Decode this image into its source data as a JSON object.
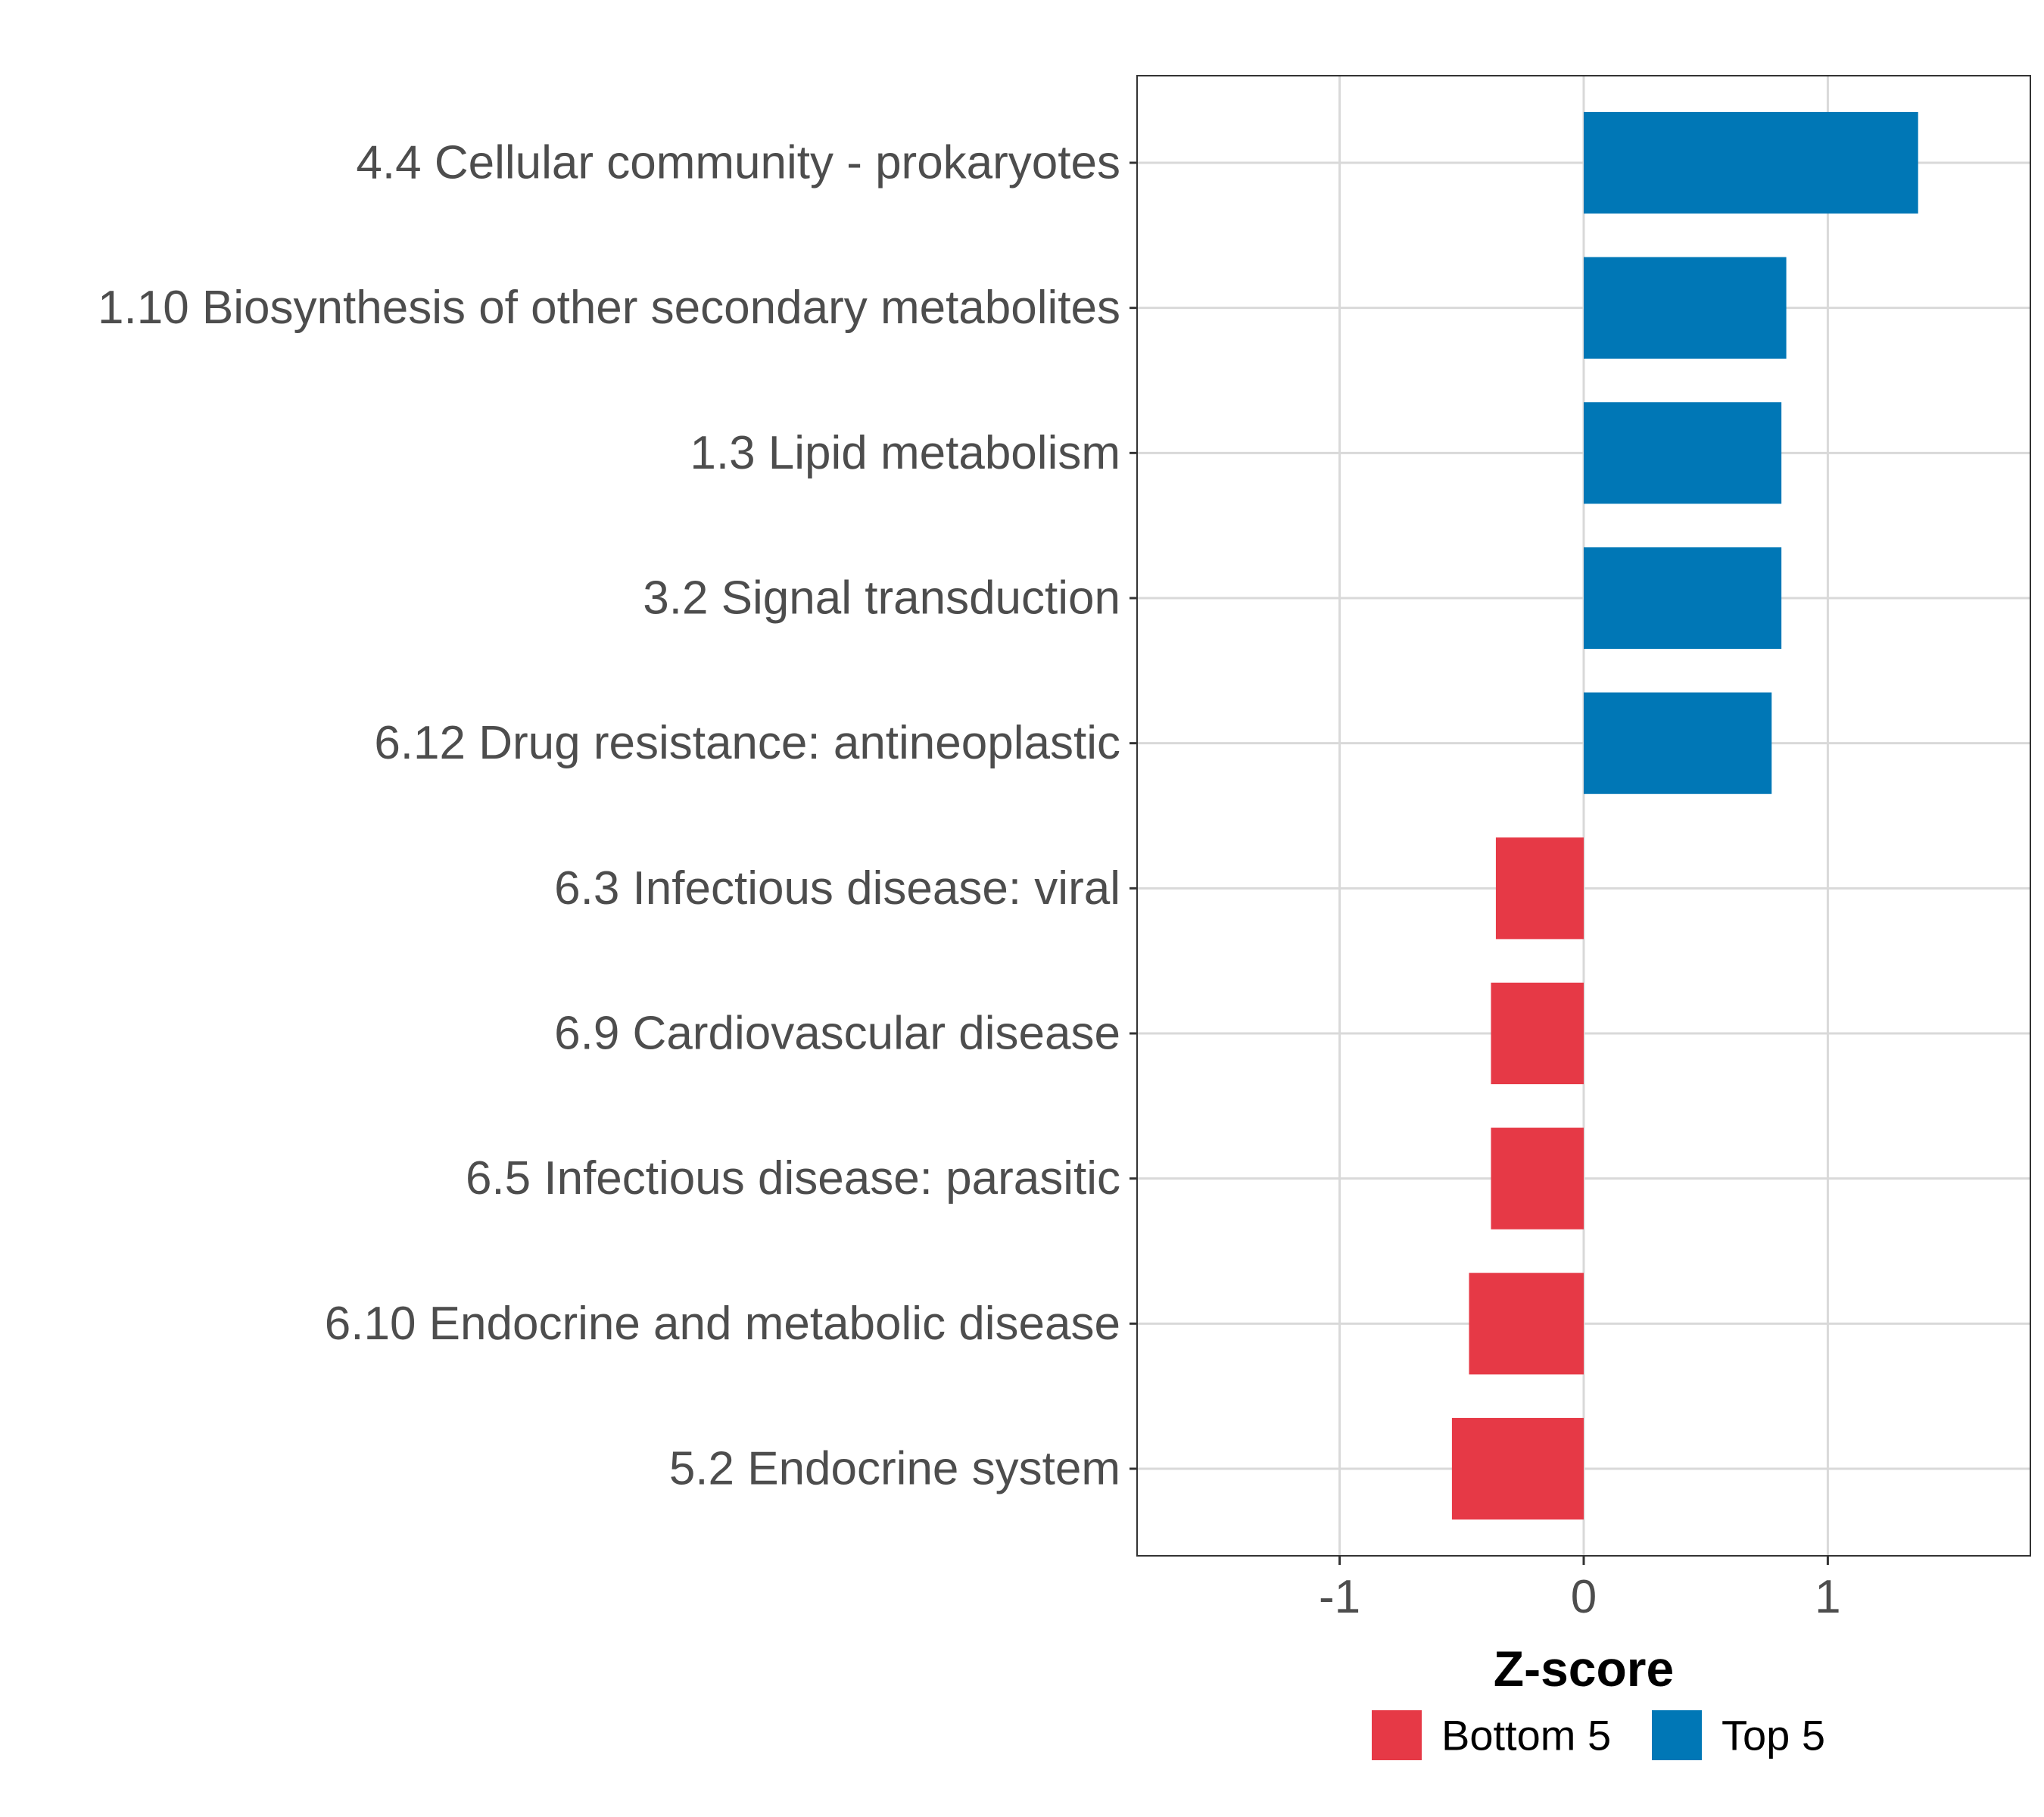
{
  "chart_data": {
    "type": "bar",
    "orientation": "horizontal",
    "categories": [
      "4.4 Cellular community - prokaryotes",
      "1.10 Biosynthesis of other secondary metabolites",
      "1.3 Lipid metabolism",
      "3.2 Signal transduction",
      "6.12 Drug resistance: antineoplastic",
      "6.3 Infectious disease: viral",
      "6.9 Cardiovascular disease",
      "6.5 Infectious disease: parasitic",
      "6.10 Endocrine and metabolic disease",
      "5.2 Endocrine system"
    ],
    "values": [
      1.37,
      0.83,
      0.81,
      0.81,
      0.77,
      -0.36,
      -0.38,
      -0.38,
      -0.47,
      -0.54
    ],
    "groups": [
      "Top 5",
      "Top 5",
      "Top 5",
      "Top 5",
      "Top 5",
      "Bottom 5",
      "Bottom 5",
      "Bottom 5",
      "Bottom 5",
      "Bottom 5"
    ],
    "xlabel": "Z-score",
    "ylabel": "",
    "xlim": [
      -1.83,
      1.83
    ],
    "xticks": [
      -1,
      0,
      1
    ],
    "xtick_labels": [
      "-1",
      "0",
      "1"
    ],
    "grid": true,
    "legend": {
      "position": "bottom",
      "items": [
        {
          "label": "Bottom 5",
          "color": "#E63946"
        },
        {
          "label": "Top 5",
          "color": "#0077B6"
        }
      ]
    },
    "colors": {
      "Bottom 5": "#E63946",
      "Top 5": "#0077B6"
    }
  }
}
